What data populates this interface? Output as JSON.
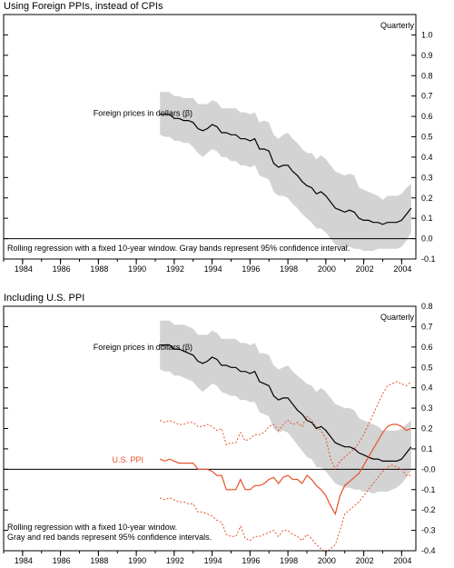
{
  "chart_data": [
    {
      "type": "line",
      "title": "Using Foreign PPIs, instead of CPIs",
      "frequency_label": "Quarterly",
      "note": "Rolling regression with a fixed 10-year window. Gray bands represent 95% confidence interval.",
      "x_ticks": [
        "1984",
        "1986",
        "1988",
        "1990",
        "1992",
        "1994",
        "1996",
        "1998",
        "2000",
        "2002",
        "2004"
      ],
      "y_ticks": [
        "-0.1",
        "0.0",
        "0.1",
        "0.2",
        "0.3",
        "0.4",
        "0.5",
        "0.6",
        "0.7",
        "0.8",
        "0.9",
        "1.0"
      ],
      "ylim": [
        -0.1,
        1.1
      ],
      "xlim": [
        1983,
        2004.75
      ],
      "y_axis_side": "right",
      "series": [
        {
          "name": "Foreign prices in dollars (β)",
          "color": "#000000",
          "band_color": "#d3d3d3",
          "x": [
            1991.25,
            1991.5,
            1991.75,
            1992,
            1992.25,
            1992.5,
            1992.75,
            1993,
            1993.25,
            1993.5,
            1993.75,
            1994,
            1994.25,
            1994.5,
            1994.75,
            1995,
            1995.25,
            1995.5,
            1995.75,
            1996,
            1996.25,
            1996.5,
            1996.75,
            1997,
            1997.25,
            1997.5,
            1997.75,
            1998,
            1998.25,
            1998.5,
            1998.75,
            1999,
            1999.25,
            1999.5,
            1999.75,
            2000,
            2000.25,
            2000.5,
            2000.75,
            2001,
            2001.25,
            2001.5,
            2001.75,
            2002,
            2002.25,
            2002.5,
            2002.75,
            2003,
            2003.25,
            2003.5,
            2003.75,
            2004,
            2004.25,
            2004.5
          ],
          "y": [
            0.61,
            0.61,
            0.61,
            0.59,
            0.59,
            0.58,
            0.58,
            0.57,
            0.54,
            0.53,
            0.54,
            0.56,
            0.55,
            0.52,
            0.52,
            0.51,
            0.51,
            0.49,
            0.49,
            0.48,
            0.49,
            0.44,
            0.44,
            0.43,
            0.37,
            0.35,
            0.36,
            0.36,
            0.33,
            0.31,
            0.28,
            0.26,
            0.25,
            0.22,
            0.23,
            0.21,
            0.18,
            0.15,
            0.14,
            0.13,
            0.14,
            0.13,
            0.1,
            0.09,
            0.09,
            0.08,
            0.08,
            0.07,
            0.08,
            0.08,
            0.08,
            0.09,
            0.12,
            0.15
          ],
          "lower": [
            0.51,
            0.5,
            0.5,
            0.48,
            0.48,
            0.47,
            0.47,
            0.45,
            0.42,
            0.4,
            0.42,
            0.44,
            0.43,
            0.4,
            0.4,
            0.38,
            0.38,
            0.36,
            0.36,
            0.35,
            0.36,
            0.31,
            0.3,
            0.29,
            0.23,
            0.21,
            0.21,
            0.2,
            0.17,
            0.15,
            0.12,
            0.1,
            0.08,
            0.05,
            0.05,
            0.03,
            0.0,
            -0.03,
            -0.04,
            -0.05,
            -0.04,
            -0.05,
            -0.05,
            -0.06,
            -0.06,
            -0.06,
            -0.05,
            -0.05,
            -0.05,
            -0.05,
            -0.05,
            -0.04,
            -0.01,
            0.03
          ],
          "upper": [
            0.72,
            0.72,
            0.72,
            0.7,
            0.7,
            0.69,
            0.69,
            0.69,
            0.66,
            0.66,
            0.66,
            0.68,
            0.67,
            0.64,
            0.64,
            0.64,
            0.64,
            0.62,
            0.62,
            0.61,
            0.62,
            0.57,
            0.58,
            0.57,
            0.51,
            0.49,
            0.51,
            0.52,
            0.49,
            0.47,
            0.44,
            0.42,
            0.42,
            0.39,
            0.41,
            0.39,
            0.36,
            0.33,
            0.32,
            0.31,
            0.32,
            0.31,
            0.25,
            0.24,
            0.23,
            0.22,
            0.21,
            0.19,
            0.21,
            0.21,
            0.21,
            0.22,
            0.25,
            0.27
          ]
        }
      ]
    },
    {
      "type": "line",
      "title": "Including U.S. PPI",
      "frequency_label": "Quarterly",
      "note_lines": [
        "Rolling regression with a fixed 10-year window.",
        "Gray and red bands represent 95% confidence intervals."
      ],
      "x_ticks": [
        "1984",
        "1986",
        "1988",
        "1990",
        "1992",
        "1994",
        "1996",
        "1998",
        "2000",
        "2002",
        "2004"
      ],
      "y_ticks": [
        "-0.4",
        "-0.3",
        "-0.2",
        "-0.1",
        "-0.0",
        "0.1",
        "0.2",
        "0.3",
        "0.4",
        "0.5",
        "0.6",
        "0.7",
        "0.8"
      ],
      "ylim": [
        -0.4,
        0.8
      ],
      "xlim": [
        1983,
        2004.75
      ],
      "y_axis_side": "right",
      "series": [
        {
          "name": "Foreign prices in dollars (β)",
          "color": "#000000",
          "band_color": "#d3d3d3",
          "x": [
            1991.25,
            1991.5,
            1991.75,
            1992,
            1992.25,
            1992.5,
            1992.75,
            1993,
            1993.25,
            1993.5,
            1993.75,
            1994,
            1994.25,
            1994.5,
            1994.75,
            1995,
            1995.25,
            1995.5,
            1995.75,
            1996,
            1996.25,
            1996.5,
            1996.75,
            1997,
            1997.25,
            1997.5,
            1997.75,
            1998,
            1998.25,
            1998.5,
            1998.75,
            1999,
            1999.25,
            1999.5,
            1999.75,
            2000,
            2000.25,
            2000.5,
            2000.75,
            2001,
            2001.25,
            2001.5,
            2001.75,
            2002,
            2002.25,
            2002.5,
            2002.75,
            2003,
            2003.25,
            2003.5,
            2003.75,
            2004,
            2004.25,
            2004.5
          ],
          "y": [
            0.61,
            0.61,
            0.61,
            0.59,
            0.59,
            0.58,
            0.57,
            0.56,
            0.53,
            0.52,
            0.53,
            0.55,
            0.54,
            0.51,
            0.51,
            0.5,
            0.5,
            0.48,
            0.48,
            0.47,
            0.48,
            0.43,
            0.42,
            0.41,
            0.36,
            0.34,
            0.35,
            0.35,
            0.32,
            0.29,
            0.27,
            0.24,
            0.23,
            0.2,
            0.21,
            0.19,
            0.16,
            0.13,
            0.12,
            0.11,
            0.11,
            0.1,
            0.08,
            0.07,
            0.06,
            0.05,
            0.05,
            0.04,
            0.04,
            0.04,
            0.04,
            0.05,
            0.08,
            0.11
          ],
          "lower": [
            0.49,
            0.48,
            0.48,
            0.46,
            0.46,
            0.45,
            0.44,
            0.43,
            0.4,
            0.38,
            0.4,
            0.42,
            0.41,
            0.38,
            0.37,
            0.36,
            0.36,
            0.34,
            0.34,
            0.33,
            0.33,
            0.28,
            0.27,
            0.26,
            0.2,
            0.18,
            0.19,
            0.18,
            0.15,
            0.12,
            0.09,
            0.06,
            0.05,
            0.01,
            0.01,
            -0.01,
            -0.04,
            -0.07,
            -0.08,
            -0.09,
            -0.09,
            -0.1,
            -0.1,
            -0.11,
            -0.11,
            -0.12,
            -0.11,
            -0.11,
            -0.11,
            -0.1,
            -0.09,
            -0.07,
            -0.04,
            -0.01
          ],
          "upper": [
            0.73,
            0.73,
            0.73,
            0.71,
            0.71,
            0.71,
            0.7,
            0.69,
            0.66,
            0.66,
            0.66,
            0.68,
            0.67,
            0.64,
            0.64,
            0.64,
            0.64,
            0.62,
            0.62,
            0.61,
            0.62,
            0.57,
            0.57,
            0.56,
            0.51,
            0.49,
            0.5,
            0.51,
            0.48,
            0.46,
            0.44,
            0.42,
            0.41,
            0.38,
            0.4,
            0.38,
            0.35,
            0.32,
            0.31,
            0.3,
            0.3,
            0.29,
            0.25,
            0.24,
            0.23,
            0.22,
            0.21,
            0.19,
            0.19,
            0.19,
            0.19,
            0.2,
            0.22,
            0.24
          ]
        },
        {
          "name": "U.S. PPI",
          "color": "#e8502a",
          "band_color": "#e8502a",
          "x": [
            1991.25,
            1991.5,
            1991.75,
            1992,
            1992.25,
            1992.5,
            1992.75,
            1993,
            1993.25,
            1993.5,
            1993.75,
            1994,
            1994.25,
            1994.5,
            1994.75,
            1995,
            1995.25,
            1995.5,
            1995.75,
            1996,
            1996.25,
            1996.5,
            1996.75,
            1997,
            1997.25,
            1997.5,
            1997.75,
            1998,
            1998.25,
            1998.5,
            1998.75,
            1999,
            1999.25,
            1999.5,
            1999.75,
            2000,
            2000.25,
            2000.5,
            2000.75,
            2001,
            2001.25,
            2001.5,
            2001.75,
            2002,
            2002.25,
            2002.5,
            2002.75,
            2003,
            2003.25,
            2003.5,
            2003.75,
            2004,
            2004.25,
            2004.5
          ],
          "y": [
            0.05,
            0.04,
            0.05,
            0.04,
            0.03,
            0.03,
            0.03,
            0.03,
            0.0,
            0.0,
            0.0,
            -0.01,
            -0.03,
            -0.03,
            -0.1,
            -0.1,
            -0.1,
            -0.05,
            -0.1,
            -0.1,
            -0.08,
            -0.08,
            -0.07,
            -0.05,
            -0.04,
            -0.07,
            -0.04,
            -0.03,
            -0.05,
            -0.05,
            -0.07,
            -0.03,
            -0.05,
            -0.08,
            -0.1,
            -0.13,
            -0.18,
            -0.22,
            -0.13,
            -0.08,
            -0.06,
            -0.04,
            -0.02,
            0.02,
            0.06,
            0.1,
            0.14,
            0.18,
            0.21,
            0.22,
            0.22,
            0.21,
            0.19,
            0.2
          ],
          "lower": [
            -0.14,
            -0.15,
            -0.14,
            -0.15,
            -0.16,
            -0.16,
            -0.17,
            -0.17,
            -0.21,
            -0.21,
            -0.22,
            -0.23,
            -0.25,
            -0.26,
            -0.32,
            -0.33,
            -0.33,
            -0.28,
            -0.34,
            -0.35,
            -0.33,
            -0.33,
            -0.32,
            -0.31,
            -0.3,
            -0.33,
            -0.3,
            -0.3,
            -0.32,
            -0.33,
            -0.35,
            -0.32,
            -0.34,
            -0.37,
            -0.39,
            -0.41,
            -0.39,
            -0.37,
            -0.3,
            -0.22,
            -0.2,
            -0.18,
            -0.16,
            -0.13,
            -0.1,
            -0.07,
            -0.04,
            -0.01,
            0.01,
            0.02,
            0.01,
            0.0,
            -0.03,
            -0.03
          ],
          "upper": [
            0.24,
            0.23,
            0.24,
            0.23,
            0.22,
            0.22,
            0.23,
            0.23,
            0.21,
            0.21,
            0.22,
            0.21,
            0.19,
            0.2,
            0.12,
            0.13,
            0.13,
            0.18,
            0.14,
            0.15,
            0.17,
            0.17,
            0.18,
            0.21,
            0.22,
            0.19,
            0.22,
            0.24,
            0.22,
            0.23,
            0.21,
            0.26,
            0.24,
            0.21,
            0.19,
            0.15,
            0.05,
            0.0,
            0.04,
            0.06,
            0.08,
            0.1,
            0.13,
            0.17,
            0.22,
            0.27,
            0.32,
            0.37,
            0.41,
            0.42,
            0.43,
            0.42,
            0.41,
            0.43
          ]
        }
      ]
    }
  ]
}
